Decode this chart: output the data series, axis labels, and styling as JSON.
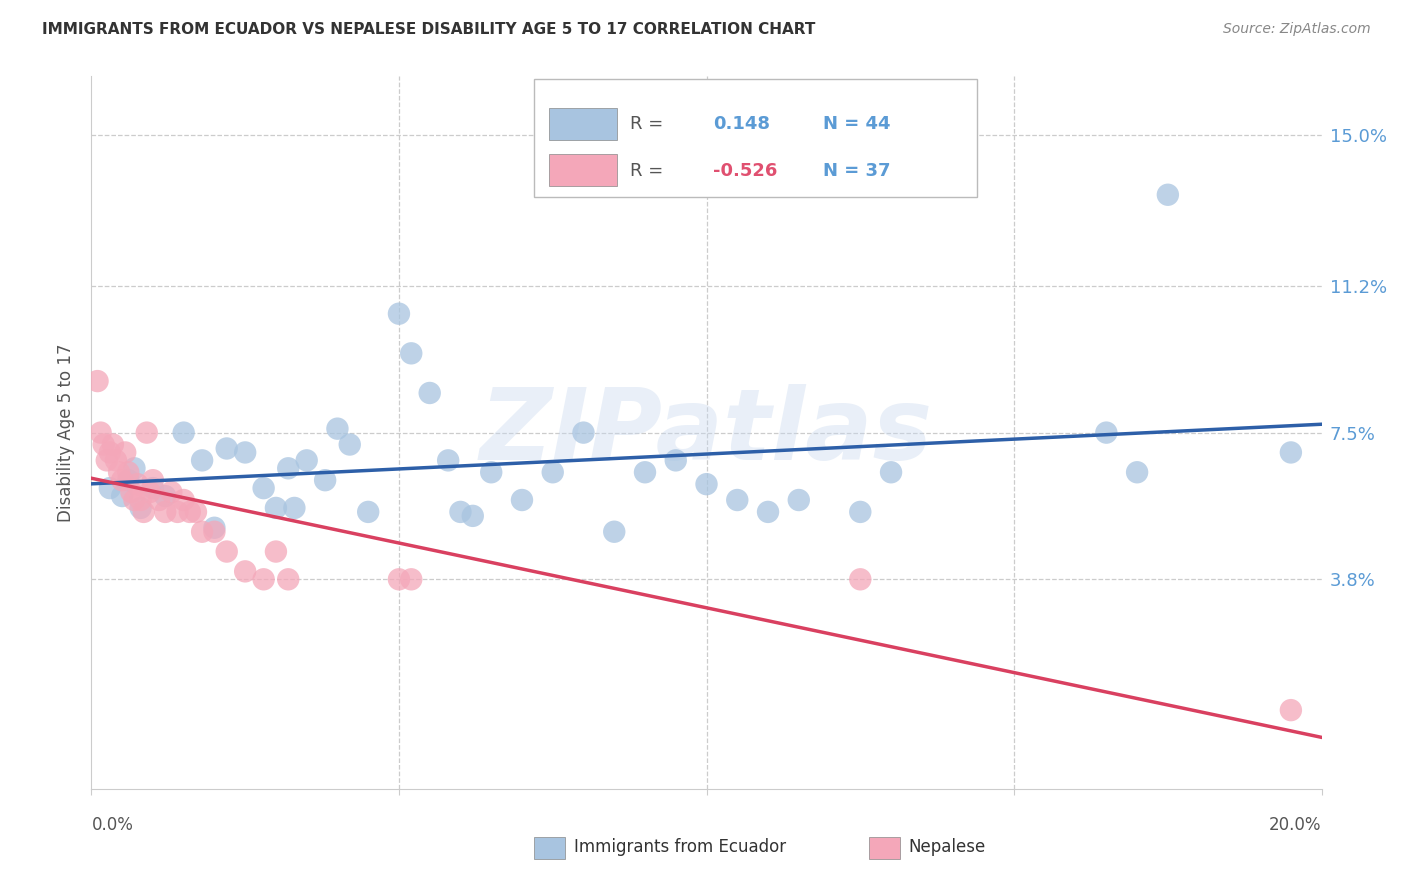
{
  "title": "IMMIGRANTS FROM ECUADOR VS NEPALESE DISABILITY AGE 5 TO 17 CORRELATION CHART",
  "source": "Source: ZipAtlas.com",
  "ylabel": "Disability Age 5 to 17",
  "ytick_values": [
    15.0,
    11.2,
    7.5,
    3.8
  ],
  "ytick_labels": [
    "15.0%",
    "11.2%",
    "7.5%",
    "3.8%"
  ],
  "xlim": [
    0.0,
    20.0
  ],
  "ylim": [
    -1.5,
    16.5
  ],
  "legend_r_ecuador": "0.148",
  "legend_n_ecuador": "44",
  "legend_r_nepalese": "-0.526",
  "legend_n_nepalese": "37",
  "ecuador_color": "#a8c4e0",
  "nepalese_color": "#f4a7b9",
  "ecuador_line_color": "#2d5fa8",
  "nepalese_line_color": "#d94060",
  "nepalese_line_dash_color": "#e0a0b0",
  "watermark": "ZIPatlas",
  "ecuador_points": [
    [
      0.3,
      6.1
    ],
    [
      0.5,
      5.9
    ],
    [
      0.6,
      6.3
    ],
    [
      0.7,
      6.6
    ],
    [
      0.8,
      5.6
    ],
    [
      1.0,
      6.1
    ],
    [
      1.2,
      5.9
    ],
    [
      1.5,
      7.5
    ],
    [
      1.8,
      6.8
    ],
    [
      2.0,
      5.1
    ],
    [
      2.2,
      7.1
    ],
    [
      2.5,
      7.0
    ],
    [
      2.8,
      6.1
    ],
    [
      3.0,
      5.6
    ],
    [
      3.2,
      6.6
    ],
    [
      3.3,
      5.6
    ],
    [
      3.5,
      6.8
    ],
    [
      3.8,
      6.3
    ],
    [
      4.0,
      7.6
    ],
    [
      4.2,
      7.2
    ],
    [
      4.5,
      5.5
    ],
    [
      5.0,
      10.5
    ],
    [
      5.2,
      9.5
    ],
    [
      5.5,
      8.5
    ],
    [
      5.8,
      6.8
    ],
    [
      6.0,
      5.5
    ],
    [
      6.2,
      5.4
    ],
    [
      6.5,
      6.5
    ],
    [
      7.0,
      5.8
    ],
    [
      7.5,
      6.5
    ],
    [
      8.0,
      7.5
    ],
    [
      8.5,
      5.0
    ],
    [
      9.0,
      6.5
    ],
    [
      9.5,
      6.8
    ],
    [
      10.0,
      6.2
    ],
    [
      10.5,
      5.8
    ],
    [
      11.0,
      5.5
    ],
    [
      11.5,
      5.8
    ],
    [
      12.5,
      5.5
    ],
    [
      13.0,
      6.5
    ],
    [
      16.5,
      7.5
    ],
    [
      17.0,
      6.5
    ],
    [
      17.5,
      13.5
    ],
    [
      19.5,
      7.0
    ]
  ],
  "nepalese_points": [
    [
      0.1,
      8.8
    ],
    [
      0.15,
      7.5
    ],
    [
      0.2,
      7.2
    ],
    [
      0.25,
      6.8
    ],
    [
      0.3,
      7.0
    ],
    [
      0.35,
      7.2
    ],
    [
      0.4,
      6.8
    ],
    [
      0.45,
      6.5
    ],
    [
      0.5,
      6.3
    ],
    [
      0.55,
      7.0
    ],
    [
      0.6,
      6.5
    ],
    [
      0.65,
      6.0
    ],
    [
      0.7,
      5.8
    ],
    [
      0.75,
      6.2
    ],
    [
      0.8,
      5.8
    ],
    [
      0.85,
      5.5
    ],
    [
      0.9,
      7.5
    ],
    [
      0.95,
      6.0
    ],
    [
      1.0,
      6.3
    ],
    [
      1.1,
      5.8
    ],
    [
      1.2,
      5.5
    ],
    [
      1.3,
      6.0
    ],
    [
      1.4,
      5.5
    ],
    [
      1.5,
      5.8
    ],
    [
      1.6,
      5.5
    ],
    [
      1.7,
      5.5
    ],
    [
      1.8,
      5.0
    ],
    [
      2.0,
      5.0
    ],
    [
      2.2,
      4.5
    ],
    [
      2.5,
      4.0
    ],
    [
      2.8,
      3.8
    ],
    [
      3.0,
      4.5
    ],
    [
      3.2,
      3.8
    ],
    [
      5.0,
      3.8
    ],
    [
      5.2,
      3.8
    ],
    [
      12.5,
      3.8
    ],
    [
      19.5,
      0.5
    ]
  ]
}
